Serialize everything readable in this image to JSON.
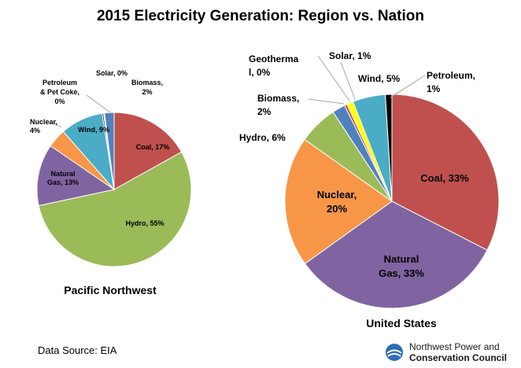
{
  "title": "2015 Electricity Generation: Region vs. Nation",
  "source": "Data Source: EIA",
  "logo": {
    "line1": "Northwest Power and",
    "line2": "Conservation Council"
  },
  "chart_data": [
    {
      "type": "pie",
      "title": "Pacific Northwest",
      "slices": [
        {
          "name": "Coal",
          "value": 17,
          "color": "#c0504d",
          "label": "Coal, 17%"
        },
        {
          "name": "Hydro",
          "value": 55,
          "color": "#9bbb59",
          "label": "Hydro, 55%"
        },
        {
          "name": "Natural Gas",
          "value": 13,
          "color": "#8064a2",
          "label": "Natural Gas, 13%"
        },
        {
          "name": "Nuclear",
          "value": 4,
          "color": "#f79646",
          "label": "Nuclear, 4%"
        },
        {
          "name": "Wind",
          "value": 9,
          "color": "#4bacc6",
          "label": "Wind, 9%"
        },
        {
          "name": "Petroleum & Pet Coke",
          "value": 0.3,
          "color": "#000000",
          "label": "Petroleum & Pet Coke, 0%"
        },
        {
          "name": "Solar",
          "value": 0.2,
          "color": "#ffff00",
          "label": "Solar, 0%"
        },
        {
          "name": "Biomass",
          "value": 2,
          "color": "#4f81bd",
          "label": "Biomass, 2%"
        }
      ]
    },
    {
      "type": "pie",
      "title": "United States",
      "slices": [
        {
          "name": "Coal",
          "value": 33,
          "color": "#c0504d",
          "label": "Coal, 33%"
        },
        {
          "name": "Natural Gas",
          "value": 33,
          "color": "#8064a2",
          "label": "Natural Gas, 33%"
        },
        {
          "name": "Nuclear",
          "value": 20,
          "color": "#f79646",
          "label": "Nuclear, 20%"
        },
        {
          "name": "Hydro",
          "value": 6,
          "color": "#9bbb59",
          "label": "Hydro, 6%"
        },
        {
          "name": "Biomass",
          "value": 2,
          "color": "#4f81bd",
          "label": "Biomass, 2%"
        },
        {
          "name": "Geothermal",
          "value": 0.4,
          "color": "#c0504d",
          "label": "Geothermal, 0%"
        },
        {
          "name": "Solar",
          "value": 1,
          "color": "#ffff00",
          "label": "Solar, 1%"
        },
        {
          "name": "Wind",
          "value": 5,
          "color": "#4bacc6",
          "label": "Wind, 5%"
        },
        {
          "name": "Petroleum",
          "value": 1,
          "color": "#000000",
          "label": "Petroleum, 1%"
        }
      ]
    }
  ]
}
